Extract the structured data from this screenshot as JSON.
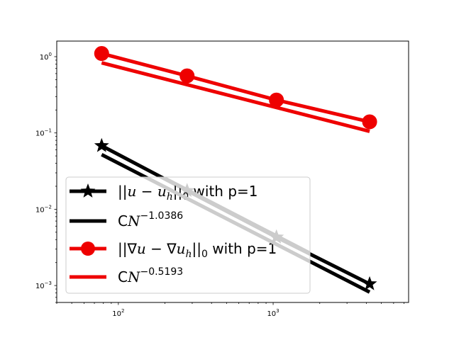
{
  "chart_data": {
    "type": "line",
    "xscale": "log",
    "yscale": "log",
    "xlim": [
      40,
      7500
    ],
    "ylim": [
      0.0006,
      1.6
    ],
    "grid": false,
    "legend_placement": "lower-left",
    "x_ticks": [
      {
        "value": 100,
        "base": "10",
        "exp": "2"
      },
      {
        "value": 1000,
        "base": "10",
        "exp": "3"
      }
    ],
    "y_ticks": [
      {
        "value": 1,
        "base": "10",
        "exp": "0"
      },
      {
        "value": 0.1,
        "base": "10",
        "exp": "−1"
      },
      {
        "value": 0.01,
        "base": "10",
        "exp": "−2"
      },
      {
        "value": 0.001,
        "base": "10",
        "exp": "−3"
      }
    ],
    "series": [
      {
        "name": "||u − u_h||_0 with p=1",
        "color": "#000000",
        "marker": "star",
        "x": [
          78,
          278,
          1050,
          4200
        ],
        "y": [
          0.068,
          0.0175,
          0.0043,
          0.00105
        ]
      },
      {
        "name": "CN^−1.0386",
        "color": "#000000",
        "marker": "none",
        "x": [
          78,
          4200
        ],
        "y": [
          0.052,
          0.00082
        ]
      },
      {
        "name": "||∇u − ∇u_h||_0 with p=1",
        "color": "#ee0000",
        "marker": "circle",
        "x": [
          78,
          278,
          1050,
          4200
        ],
        "y": [
          1.1,
          0.56,
          0.27,
          0.14
        ]
      },
      {
        "name": "CN^−0.5193",
        "color": "#ee0000",
        "marker": "none",
        "x": [
          78,
          4200
        ],
        "y": [
          0.83,
          0.105
        ]
      }
    ],
    "legend": {
      "entries": [
        {
          "pre": "||",
          "it1": "u",
          "mid": " − ",
          "it2": "u",
          "sub": "h",
          "post": "||",
          "sub2": "0",
          "tail": " with p=1"
        },
        {
          "pre": "C",
          "it1": "N",
          "sup": "−1.0386"
        },
        {
          "pre": "||∇",
          "it1": "u",
          "mid": " − ∇",
          "it2": "u",
          "sub": "h",
          "post": "||",
          "sub2": "0",
          "tail": " with p=1"
        },
        {
          "pre": "C",
          "it1": "N",
          "sup": "−0.5193"
        }
      ]
    },
    "overlap_color": "#cccccc"
  }
}
